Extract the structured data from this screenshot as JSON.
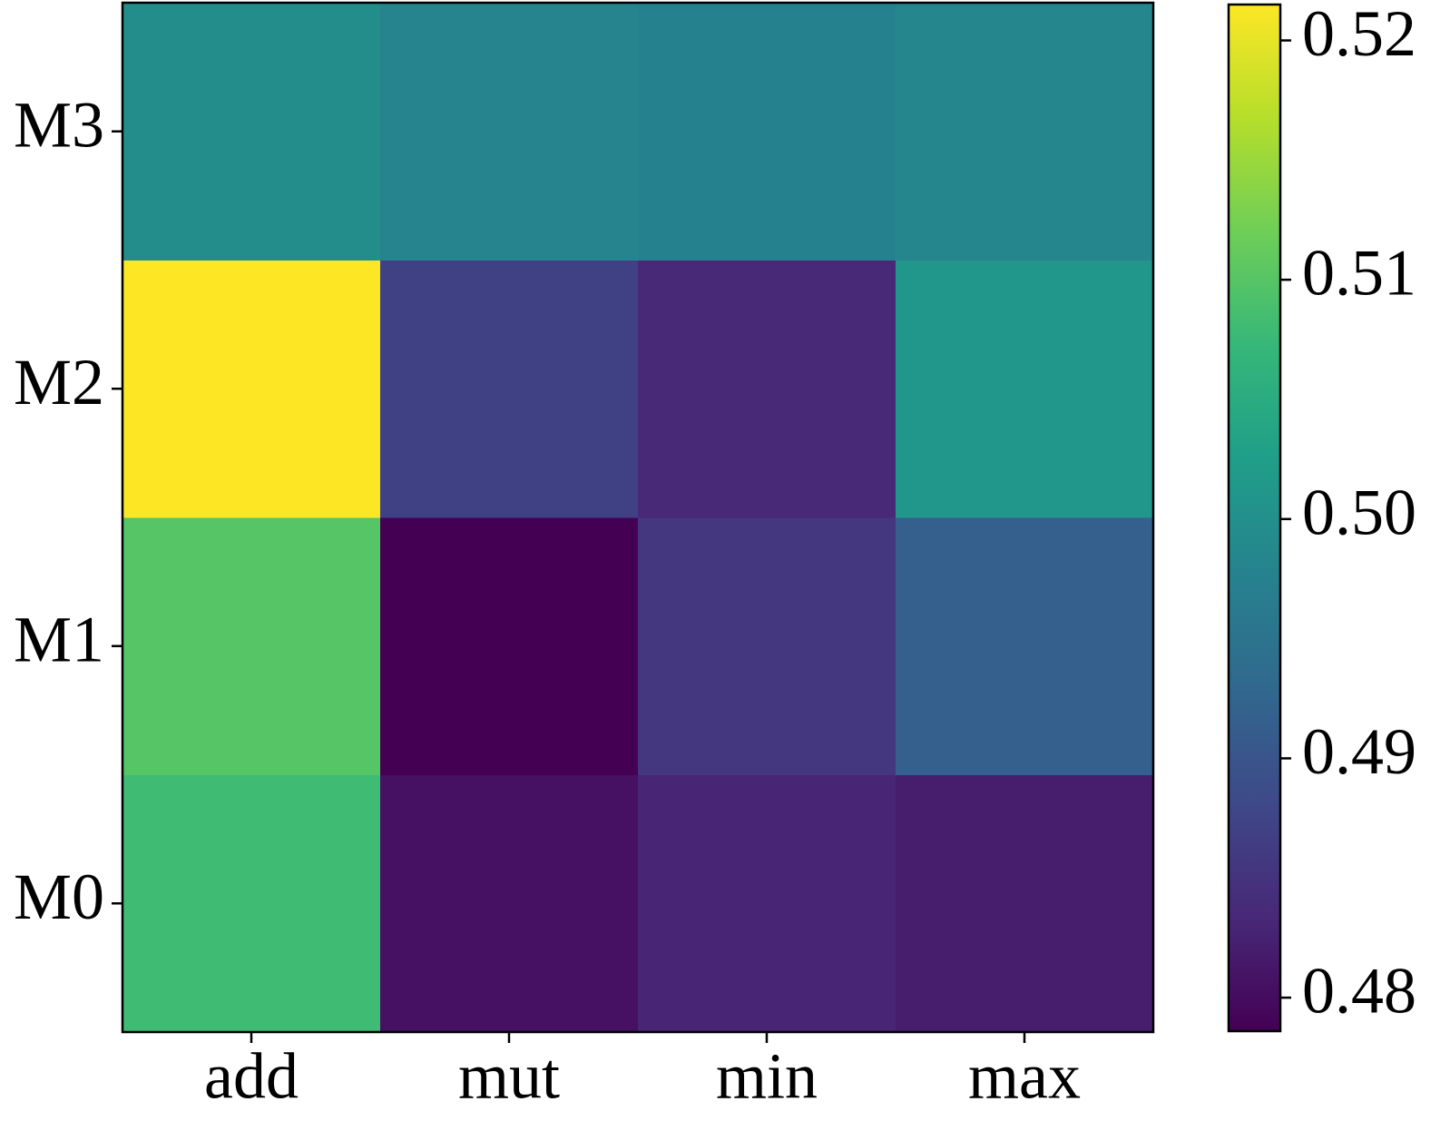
{
  "chart_data": {
    "type": "heatmap",
    "colormap": "viridis",
    "x": [
      "add",
      "mut",
      "min",
      "max"
    ],
    "y": [
      "M0",
      "M1",
      "M2",
      "M3"
    ],
    "z": [
      [
        0.508,
        0.4805,
        0.483,
        0.482
      ],
      [
        0.51,
        0.4786,
        0.4855,
        0.4915
      ],
      [
        0.5215,
        0.487,
        0.4835,
        0.501
      ],
      [
        0.4995,
        0.498,
        0.4975,
        0.4985
      ]
    ],
    "clim": [
      0.4786,
      0.5215
    ],
    "cticks": [
      0.48,
      0.49,
      {
        "value": 0.5,
        "label": "0.50"
      },
      0.51,
      0.52
    ]
  }
}
